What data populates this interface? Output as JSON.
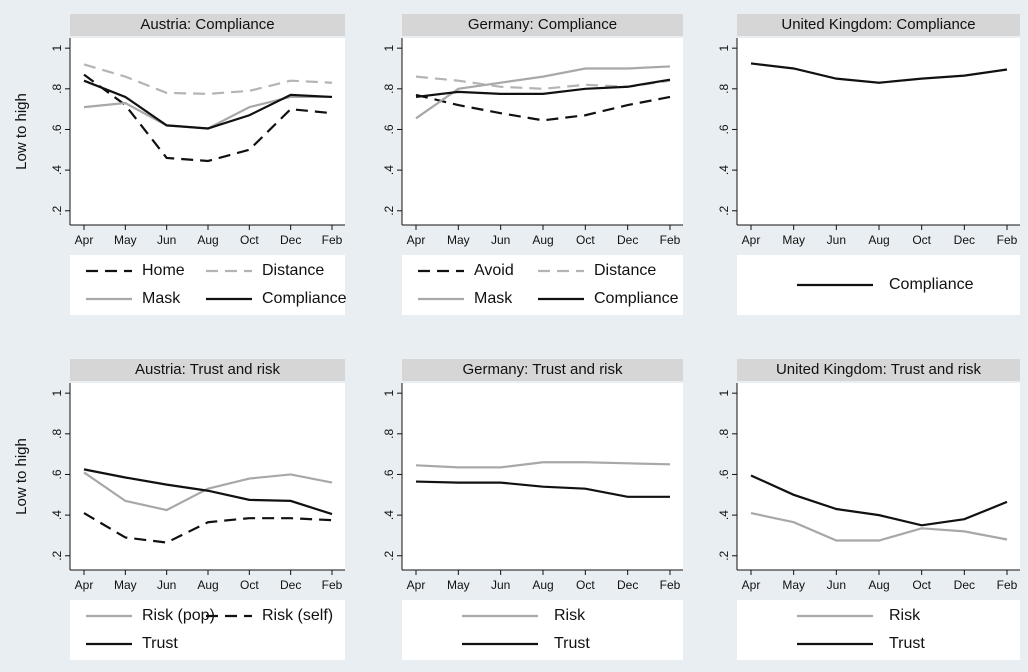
{
  "chart_data": [
    {
      "type": "line",
      "title": "Austria: Compliance",
      "y_label": "Low to high",
      "categories": [
        "Apr",
        "May",
        "Jun",
        "Aug",
        "Oct",
        "Dec",
        "Feb"
      ],
      "ylim": [
        0.13,
        1.05
      ],
      "yticks": [
        {
          "value": 0.2,
          "label": ".2"
        },
        {
          "value": 0.4,
          "label": ".4"
        },
        {
          "value": 0.6,
          "label": ".6"
        },
        {
          "value": 0.8,
          "label": ".8"
        },
        1
      ],
      "series": [
        {
          "name": "Home",
          "color": "#111111",
          "dashed": true,
          "values": [
            0.87,
            0.72,
            0.46,
            0.445,
            0.5,
            0.7,
            0.68
          ]
        },
        {
          "name": "Distance",
          "color": "#b4b4b4",
          "dashed": true,
          "values": [
            0.92,
            0.86,
            0.78,
            0.775,
            0.79,
            0.84,
            0.83
          ]
        },
        {
          "name": "Mask",
          "color": "#a8a8a8",
          "dashed": false,
          "values": [
            0.71,
            0.73,
            0.62,
            0.605,
            0.71,
            0.76,
            0.76
          ]
        },
        {
          "name": "Compliance",
          "color": "#111111",
          "dashed": false,
          "values": [
            0.84,
            0.76,
            0.62,
            0.605,
            0.67,
            0.77,
            0.76
          ]
        }
      ]
    },
    {
      "type": "line",
      "title": "Germany: Compliance",
      "categories": [
        "Apr",
        "May",
        "Jun",
        "Aug",
        "Oct",
        "Dec",
        "Feb"
      ],
      "ylim": [
        0.13,
        1.05
      ],
      "yticks": [
        {
          "value": 0.2,
          "label": ".2"
        },
        {
          "value": 0.4,
          "label": ".4"
        },
        {
          "value": 0.6,
          "label": ".6"
        },
        {
          "value": 0.8,
          "label": ".8"
        },
        1
      ],
      "series": [
        {
          "name": "Avoid",
          "color": "#111111",
          "dashed": true,
          "values": [
            0.77,
            0.72,
            0.68,
            0.645,
            0.67,
            0.72,
            0.76
          ]
        },
        {
          "name": "Distance",
          "color": "#b4b4b4",
          "dashed": true,
          "values": [
            0.86,
            0.84,
            0.81,
            0.8,
            0.82,
            0.81,
            0.84
          ]
        },
        {
          "name": "Mask",
          "color": "#a8a8a8",
          "dashed": false,
          "values": [
            0.655,
            0.8,
            0.83,
            0.86,
            0.9,
            0.9,
            0.91
          ]
        },
        {
          "name": "Compliance",
          "color": "#111111",
          "dashed": false,
          "values": [
            0.76,
            0.785,
            0.775,
            0.775,
            0.8,
            0.81,
            0.845
          ]
        }
      ]
    },
    {
      "type": "line",
      "title": "United Kingdom: Compliance",
      "categories": [
        "Apr",
        "May",
        "Jun",
        "Aug",
        "Oct",
        "Dec",
        "Feb"
      ],
      "ylim": [
        0.13,
        1.05
      ],
      "yticks": [
        {
          "value": 0.2,
          "label": ".2"
        },
        {
          "value": 0.4,
          "label": ".4"
        },
        {
          "value": 0.6,
          "label": ".6"
        },
        {
          "value": 0.8,
          "label": ".8"
        },
        1
      ],
      "series": [
        {
          "name": "Compliance",
          "color": "#111111",
          "dashed": false,
          "values": [
            0.925,
            0.9,
            0.85,
            0.83,
            0.85,
            0.865,
            0.895
          ]
        }
      ]
    },
    {
      "type": "line",
      "title": "Austria: Trust and risk",
      "y_label": "Low to high",
      "categories": [
        "Apr",
        "May",
        "Jun",
        "Aug",
        "Oct",
        "Dec",
        "Feb"
      ],
      "ylim": [
        0.13,
        1.05
      ],
      "yticks": [
        {
          "value": 0.2,
          "label": ".2"
        },
        {
          "value": 0.4,
          "label": ".4"
        },
        {
          "value": 0.6,
          "label": ".6"
        },
        {
          "value": 0.8,
          "label": ".8"
        },
        1
      ],
      "series": [
        {
          "name": "Risk (pop)",
          "color": "#a8a8a8",
          "dashed": false,
          "values": [
            0.61,
            0.47,
            0.425,
            0.53,
            0.58,
            0.6,
            0.56
          ]
        },
        {
          "name": "Risk (self)",
          "color": "#111111",
          "dashed": true,
          "values": [
            0.41,
            0.29,
            0.265,
            0.365,
            0.385,
            0.385,
            0.375
          ]
        },
        {
          "name": "Trust",
          "color": "#111111",
          "dashed": false,
          "values": [
            0.625,
            0.585,
            0.55,
            0.52,
            0.475,
            0.47,
            0.405
          ]
        }
      ]
    },
    {
      "type": "line",
      "title": "Germany: Trust and risk",
      "categories": [
        "Apr",
        "May",
        "Jun",
        "Aug",
        "Oct",
        "Dec",
        "Feb"
      ],
      "ylim": [
        0.13,
        1.05
      ],
      "yticks": [
        {
          "value": 0.2,
          "label": ".2"
        },
        {
          "value": 0.4,
          "label": ".4"
        },
        {
          "value": 0.6,
          "label": ".6"
        },
        {
          "value": 0.8,
          "label": ".8"
        },
        1
      ],
      "series": [
        {
          "name": "Risk",
          "color": "#a8a8a8",
          "dashed": false,
          "values": [
            0.645,
            0.635,
            0.635,
            0.66,
            0.66,
            0.655,
            0.65
          ]
        },
        {
          "name": "Trust",
          "color": "#111111",
          "dashed": false,
          "values": [
            0.565,
            0.56,
            0.56,
            0.54,
            0.53,
            0.49,
            0.49
          ]
        }
      ]
    },
    {
      "type": "line",
      "title": "United Kingdom: Trust and risk",
      "categories": [
        "Apr",
        "May",
        "Jun",
        "Aug",
        "Oct",
        "Dec",
        "Feb"
      ],
      "ylim": [
        0.13,
        1.05
      ],
      "yticks": [
        {
          "value": 0.2,
          "label": ".2"
        },
        {
          "value": 0.4,
          "label": ".4"
        },
        {
          "value": 0.6,
          "label": ".6"
        },
        {
          "value": 0.8,
          "label": ".8"
        },
        1
      ],
      "series": [
        {
          "name": "Risk",
          "color": "#a8a8a8",
          "dashed": false,
          "values": [
            0.41,
            0.365,
            0.275,
            0.275,
            0.335,
            0.32,
            0.28
          ]
        },
        {
          "name": "Trust",
          "color": "#111111",
          "dashed": false,
          "values": [
            0.595,
            0.5,
            0.43,
            0.4,
            0.35,
            0.38,
            0.465
          ]
        }
      ]
    }
  ]
}
